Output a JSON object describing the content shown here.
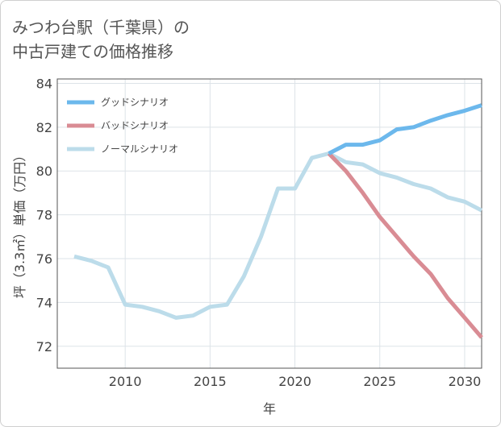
{
  "title_line1": "みつわ台駅（千葉県）の",
  "title_line2": "中古戸建ての価格推移",
  "chart_data": {
    "type": "line",
    "xlabel": "年",
    "ylabel": "坪（3.3㎡）単価（万円）",
    "xlim": [
      2006,
      2031
    ],
    "ylim": [
      71,
      84.2
    ],
    "xticks": [
      2010,
      2015,
      2020,
      2025,
      2030
    ],
    "yticks": [
      72,
      74,
      76,
      78,
      80,
      82,
      84
    ],
    "grid": true,
    "legend_position": "top-left",
    "series": [
      {
        "name": "グッドシナリオ",
        "color": "#6cb8ec",
        "x": [
          2022,
          2023,
          2024,
          2025,
          2026,
          2027,
          2028,
          2029,
          2030,
          2031
        ],
        "y": [
          80.8,
          81.2,
          81.2,
          81.4,
          81.9,
          82.0,
          82.3,
          82.55,
          82.75,
          83.0
        ]
      },
      {
        "name": "バッドシナリオ",
        "color": "#d98c94",
        "x": [
          2022,
          2023,
          2024,
          2025,
          2026,
          2027,
          2028,
          2029,
          2030,
          2031
        ],
        "y": [
          80.8,
          80.0,
          79.0,
          77.9,
          77.0,
          76.1,
          75.3,
          74.2,
          73.3,
          72.4
        ]
      },
      {
        "name": "ノーマルシナリオ",
        "color": "#bcdcea",
        "x": [
          2007,
          2008,
          2009,
          2010,
          2011,
          2012,
          2013,
          2014,
          2015,
          2016,
          2017,
          2018,
          2019,
          2020,
          2021,
          2022,
          2023,
          2024,
          2025,
          2026,
          2027,
          2028,
          2029,
          2030,
          2031
        ],
        "y": [
          76.1,
          75.9,
          75.6,
          73.9,
          73.8,
          73.6,
          73.3,
          73.4,
          73.8,
          73.9,
          75.2,
          77.0,
          79.2,
          79.2,
          80.6,
          80.8,
          80.4,
          80.3,
          79.9,
          79.7,
          79.4,
          79.2,
          78.8,
          78.6,
          78.2
        ]
      }
    ]
  }
}
